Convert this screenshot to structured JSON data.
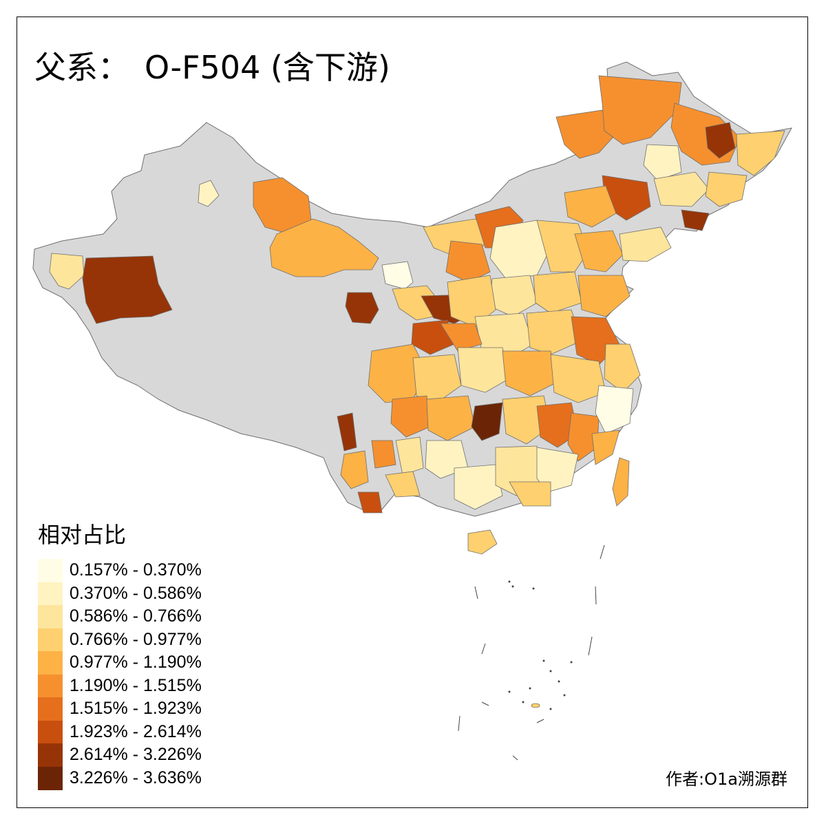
{
  "title": {
    "prefix": "父系：",
    "main": "O-F504 (含下游)"
  },
  "legend": {
    "title": "相对占比",
    "items": [
      {
        "label": "0.157% - 0.370%",
        "color": "#fffde6"
      },
      {
        "label": "0.370% - 0.586%",
        "color": "#fff3c2"
      },
      {
        "label": "0.586% - 0.766%",
        "color": "#fee59c"
      },
      {
        "label": "0.766% - 0.977%",
        "color": "#fed06f"
      },
      {
        "label": "0.977% - 1.190%",
        "color": "#fdb246"
      },
      {
        "label": "1.190% - 1.515%",
        "color": "#f6902e"
      },
      {
        "label": "1.515% - 1.923%",
        "color": "#e56f1d"
      },
      {
        "label": "1.923% - 2.614%",
        "color": "#c94f0f"
      },
      {
        "label": "2.614% - 3.226%",
        "color": "#963407"
      },
      {
        "label": "3.226% - 3.636%",
        "color": "#6b2506"
      }
    ]
  },
  "colors": {
    "no_data": "#d8d8d8",
    "border": "#6e6e6e"
  },
  "author": "作者:O1a溯源群"
}
